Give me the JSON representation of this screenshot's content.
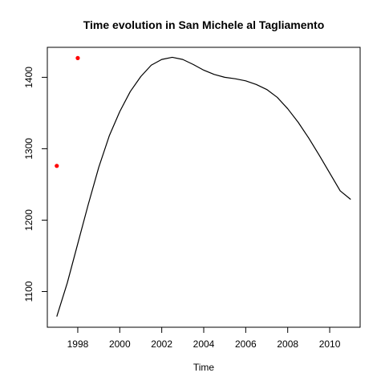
{
  "chart_data": {
    "type": "line",
    "title": "Time evolution in San Michele al Tagliamento",
    "xlabel": "Time",
    "ylabel": "",
    "xlim": [
      1996.55,
      2011.45
    ],
    "ylim": [
      1050,
      1442
    ],
    "x_ticks": [
      1998,
      2000,
      2002,
      2004,
      2006,
      2008,
      2010
    ],
    "y_ticks": [
      1100,
      1200,
      1300,
      1400
    ],
    "grid": false,
    "legend": "none",
    "series": [
      {
        "style": "line",
        "color": "#000000",
        "x": [
          1997.0,
          1997.5,
          1998.0,
          1998.5,
          1999.0,
          1999.5,
          2000.0,
          2000.5,
          2001.0,
          2001.5,
          2002.0,
          2002.5,
          2003.0,
          2003.5,
          2004.0,
          2004.5,
          2005.0,
          2005.5,
          2006.0,
          2006.5,
          2007.0,
          2007.5,
          2008.0,
          2008.5,
          2009.0,
          2009.5,
          2010.0,
          2010.5,
          2011.0
        ],
        "y": [
          1065,
          1112,
          1167,
          1222,
          1274,
          1318,
          1352,
          1380,
          1401,
          1417,
          1425,
          1428,
          1425,
          1418,
          1410,
          1404,
          1400,
          1398,
          1395,
          1390,
          1383,
          1372,
          1356,
          1337,
          1315,
          1291,
          1266,
          1241,
          1229
        ]
      },
      {
        "style": "points",
        "color": "#ff0000",
        "x": [
          1997.0,
          1998.0
        ],
        "y": [
          1276,
          1427
        ]
      }
    ]
  }
}
